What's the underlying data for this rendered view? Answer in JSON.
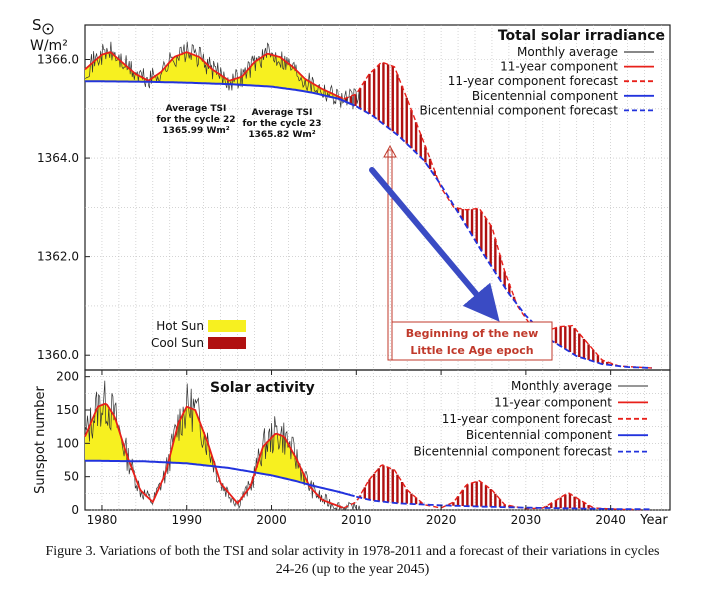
{
  "chart_data": [
    {
      "type": "line",
      "title": "Total solar irradiance",
      "ylabel_symbol": "S",
      "ylabel_unit": "W/m²",
      "ylim": [
        1359.7,
        1366.7
      ],
      "xlim": [
        1978,
        2047
      ],
      "yticks": [
        "1366.0",
        "1364.0",
        "1362.0",
        "1360.0"
      ],
      "ytick_values": [
        1366,
        1364,
        1362,
        1360
      ],
      "legend_position": "top-right",
      "legend": [
        {
          "label": "Monthly average",
          "color": "#777777",
          "style": "solid"
        },
        {
          "label": "11-year component",
          "color": "#e8201a",
          "style": "solid"
        },
        {
          "label": "11-year component forecast",
          "color": "#e8201a",
          "style": "dashed"
        },
        {
          "label": "Bicentennial component",
          "color": "#2233dd",
          "style": "solid"
        },
        {
          "label": "Bicentennial component forecast",
          "color": "#2233dd",
          "style": "dashed"
        }
      ],
      "annotations": {
        "cycle22": [
          "Average TSI",
          "for the cycle 22",
          "1365.99 Wm²"
        ],
        "cycle23": [
          "Average TSI",
          "for the cycle 23",
          "1365.82 Wm²"
        ],
        "epoch": [
          "Beginning of the new",
          "Little Ice Age epoch"
        ],
        "hot_sun": "Hot Sun",
        "cool_sun": "Cool Sun"
      },
      "series": [
        {
          "name": "Bicentennial component",
          "x": [
            1978,
            1985,
            1990,
            1995,
            2000,
            2003,
            2005,
            2008,
            2010,
            2012,
            2015,
            2018,
            2020,
            2022,
            2025,
            2028,
            2030,
            2033,
            2036,
            2039,
            2042,
            2045
          ],
          "values": [
            1365.56,
            1365.55,
            1365.53,
            1365.5,
            1365.45,
            1365.38,
            1365.32,
            1365.2,
            1365.05,
            1364.85,
            1364.45,
            1363.95,
            1363.45,
            1362.9,
            1362.05,
            1361.25,
            1360.8,
            1360.3,
            1359.98,
            1359.82,
            1359.76,
            1359.74
          ]
        },
        {
          "name": "11-year component",
          "x": [
            1978,
            1980,
            1981,
            1982,
            1984,
            1985.5,
            1987,
            1988.5,
            1990,
            1991.5,
            1993,
            1995,
            1996.5,
            1998,
            1999.5,
            2001,
            2002.5,
            2004,
            2006,
            2008.5
          ],
          "values": [
            1365.8,
            1366.1,
            1366.15,
            1366.0,
            1365.7,
            1365.57,
            1365.75,
            1366.05,
            1366.15,
            1366.05,
            1365.8,
            1365.57,
            1365.65,
            1365.95,
            1366.12,
            1366.05,
            1365.85,
            1365.6,
            1365.4,
            1365.2
          ]
        },
        {
          "name": "11-year component forecast",
          "x": [
            2008.5,
            2010,
            2011.5,
            2013,
            2014.5,
            2016,
            2018,
            2020,
            2021.5,
            2023,
            2024.5,
            2026,
            2027.5,
            2029,
            2031,
            2032.5,
            2034,
            2035.5,
            2037,
            2039,
            2041,
            2045
          ],
          "values": [
            1365.2,
            1365.3,
            1365.7,
            1365.95,
            1365.85,
            1365.2,
            1364.3,
            1363.4,
            1363.0,
            1362.95,
            1362.98,
            1362.6,
            1361.7,
            1361.0,
            1360.5,
            1360.5,
            1360.58,
            1360.6,
            1360.3,
            1359.9,
            1359.78,
            1359.74
          ]
        }
      ]
    },
    {
      "type": "line",
      "title": "Solar activity",
      "ylabel": "Sunspot number",
      "xlabel": "Year",
      "ylim": [
        0,
        210
      ],
      "xlim": [
        1978,
        2047
      ],
      "yticks": [
        "200",
        "150",
        "100",
        "50",
        "0"
      ],
      "ytick_values": [
        200,
        150,
        100,
        50,
        0
      ],
      "xticks": [
        "1980",
        "1990",
        "2000",
        "2010",
        "2020",
        "2030",
        "2040"
      ],
      "xtick_values": [
        1980,
        1990,
        2000,
        2010,
        2020,
        2030,
        2040
      ],
      "legend_position": "top-right",
      "legend": [
        {
          "label": "Monthly average",
          "color": "#888888",
          "style": "solid"
        },
        {
          "label": "11-year component",
          "color": "#e8201a",
          "style": "solid"
        },
        {
          "label": "11-year component forecast",
          "color": "#e8201a",
          "style": "dashed"
        },
        {
          "label": "Bicentennial component",
          "color": "#2233dd",
          "style": "solid"
        },
        {
          "label": "Bicentennial component forecast",
          "color": "#2233dd",
          "style": "dashed"
        }
      ],
      "series": [
        {
          "name": "Bicentennial component",
          "x": [
            1978,
            1985,
            1990,
            1995,
            2000,
            2003,
            2005,
            2008,
            2010,
            2012,
            2015,
            2020,
            2025,
            2030,
            2035,
            2040,
            2045
          ],
          "values": [
            74,
            73,
            70,
            63,
            52,
            43,
            36,
            27,
            20,
            14,
            10,
            7,
            5,
            3.5,
            2.5,
            1.5,
            1
          ]
        },
        {
          "name": "11-year component",
          "x": [
            1978,
            1979.5,
            1980.5,
            1981.5,
            1983,
            1984.5,
            1986,
            1987.5,
            1989,
            1990,
            1991,
            1992.5,
            1994,
            1996,
            1997.5,
            1999,
            2000.5,
            2001.5,
            2003,
            2004.5,
            2006,
            2008.5
          ],
          "values": [
            110,
            155,
            160,
            140,
            80,
            30,
            12,
            55,
            130,
            155,
            150,
            100,
            40,
            10,
            35,
            95,
            115,
            110,
            75,
            35,
            15,
            3
          ]
        },
        {
          "name": "11-year component forecast",
          "x": [
            2008.5,
            2010,
            2011.5,
            2013,
            2014.5,
            2016,
            2018,
            2020,
            2021.5,
            2023,
            2024.5,
            2026,
            2027.5,
            2030,
            2032,
            2033.5,
            2035,
            2036.5,
            2038,
            2041,
            2045
          ],
          "values": [
            3,
            12,
            45,
            68,
            60,
            30,
            8,
            3,
            12,
            38,
            44,
            30,
            8,
            2,
            3,
            14,
            26,
            14,
            3,
            1,
            0.5
          ]
        }
      ]
    }
  ],
  "caption": {
    "line1": "Figure 3. Variations of both the TSI and solar activity in 1978-2011 and a forecast of their variations in cycles",
    "line2": "24-26 (up to the year 2045)"
  },
  "colors": {
    "hot_sun": "#f7f020",
    "cool_sun": "#b01010",
    "arrow": "#3a4bc4",
    "epoch_marker": "#c0392b",
    "grid": "#bbbbbb"
  }
}
